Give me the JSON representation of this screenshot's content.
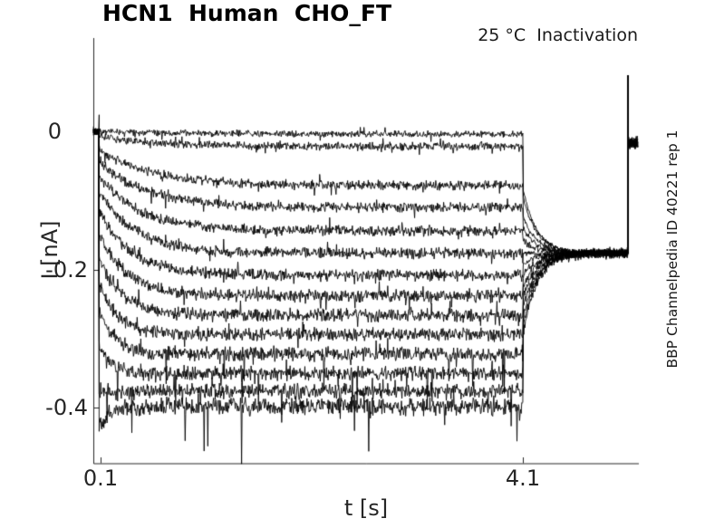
{
  "figure": {
    "title": "HCN1  Human  CHO_FT",
    "annotation": "25 °C  Inactivation",
    "side_note": "BBP Channelpedia ID 40221 rep 1"
  },
  "chart_data": {
    "type": "line",
    "title": "HCN1  Human  CHO_FT",
    "subtitle": "25 °C  Inactivation",
    "xlabel": "t [s]",
    "ylabel": "I [nA]",
    "xticks": [
      "0.1",
      "4.1"
    ],
    "yticks": [
      "0",
      "-0.2",
      "-0.4"
    ],
    "xtick_values": [
      0.1,
      4.1
    ],
    "ytick_values": [
      0,
      -0.2,
      -0.4
    ],
    "xlim": [
      0.03,
      5.2
    ],
    "ylim": [
      -0.48,
      0.135
    ],
    "grid": false,
    "legend_position": "none",
    "line_color": "#000000",
    "axis_color": "#262626",
    "background_color": "#ffffff",
    "n_traces": 14,
    "protocol": {
      "t_start_s": 0.03,
      "step_onset_s": 0.085,
      "step_end_s": 4.1,
      "tail_level_nA": -0.176,
      "tail_jump_fraction": 0.55,
      "tail_tau_s": 0.13,
      "return_spike_s": 5.096,
      "spike_peak_nA": 0.081,
      "post_spike_level_nA": -0.017,
      "t_end_s": 5.19
    },
    "traces": [
      {
        "steady_nA": -0.004,
        "peak_nA": 0.0,
        "tau_s": 0.8,
        "noise_nA": 0.0055
      },
      {
        "steady_nA": -0.022,
        "peak_nA": -0.007,
        "tau_s": 0.55,
        "noise_nA": 0.007
      },
      {
        "steady_nA": -0.078,
        "peak_nA": -0.026,
        "tau_s": 0.5,
        "noise_nA": 0.008
      },
      {
        "steady_nA": -0.11,
        "peak_nA": -0.044,
        "tau_s": 0.45,
        "noise_nA": 0.0085
      },
      {
        "steady_nA": -0.144,
        "peak_nA": -0.065,
        "tau_s": 0.4,
        "noise_nA": 0.009
      },
      {
        "steady_nA": -0.176,
        "peak_nA": -0.088,
        "tau_s": 0.35,
        "noise_nA": 0.0095
      },
      {
        "steady_nA": -0.208,
        "peak_nA": -0.115,
        "tau_s": 0.3,
        "noise_nA": 0.01
      },
      {
        "steady_nA": -0.238,
        "peak_nA": -0.148,
        "tau_s": 0.26,
        "noise_nA": 0.0105
      },
      {
        "steady_nA": -0.266,
        "peak_nA": -0.182,
        "tau_s": 0.22,
        "noise_nA": 0.011
      },
      {
        "steady_nA": -0.294,
        "peak_nA": -0.218,
        "tau_s": 0.18,
        "noise_nA": 0.0115
      },
      {
        "steady_nA": -0.322,
        "peak_nA": -0.258,
        "tau_s": 0.15,
        "noise_nA": 0.012
      },
      {
        "steady_nA": -0.35,
        "peak_nA": -0.305,
        "tau_s": 0.12,
        "noise_nA": 0.0125
      },
      {
        "steady_nA": -0.376,
        "peak_nA": -0.375,
        "tau_s": 0.1,
        "noise_nA": 0.0135
      },
      {
        "steady_nA": -0.398,
        "peak_nA": -0.43,
        "tau_s": 0.09,
        "noise_nA": 0.015
      }
    ]
  }
}
